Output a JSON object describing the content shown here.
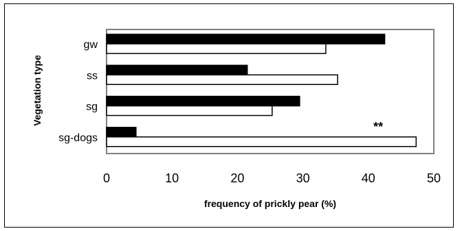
{
  "chart_data": {
    "type": "bar",
    "orientation": "horizontal",
    "categories": [
      "gw",
      "ss",
      "sg",
      "sg-dogs"
    ],
    "series": [
      {
        "color": "#000000",
        "values": [
          42.5,
          21.5,
          29.5,
          4.5
        ]
      },
      {
        "color": "#ffffff",
        "values": [
          33.5,
          35.3,
          25.3,
          47.3
        ]
      }
    ],
    "xlabel": "frequency of prickly pear (%)",
    "ylabel": "Vegetation type",
    "xlim": [
      0,
      50
    ],
    "xticks": [
      "0",
      "10",
      "20",
      "30",
      "40",
      "50"
    ],
    "annotations": [
      {
        "category": "sg-dogs",
        "x": 41.5,
        "text": "**"
      }
    ],
    "grid": false
  }
}
